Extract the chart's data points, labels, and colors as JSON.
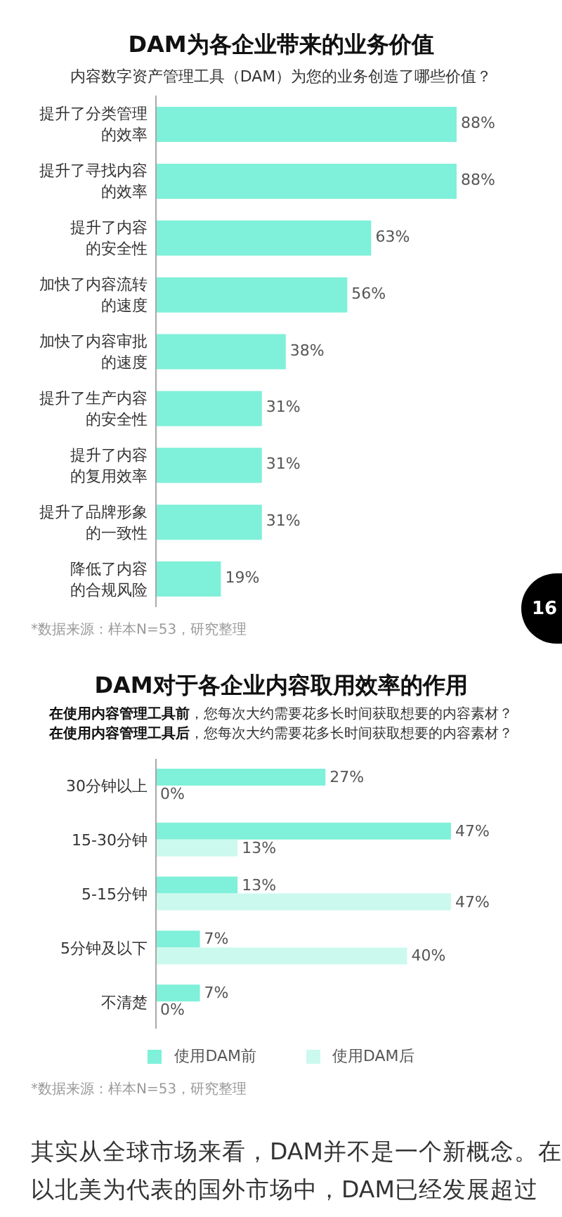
{
  "chart_data": [
    {
      "type": "bar",
      "orientation": "horizontal",
      "title": "DAM为各企业带来的业务价值",
      "subtitle": "内容数字资产管理工具（DAM）为您的业务创造了哪些价值？",
      "categories": [
        "提升了分类管理的效率",
        "提升了寻找内容的效率",
        "提升了内容的安全性",
        "加快了内容流转的速度",
        "加快了内容审批的速度",
        "提升了生产内容的安全性",
        "提升了内容的复用效率",
        "提升了品牌形象的一致性",
        "降低了内容的合规风险"
      ],
      "values": [
        88,
        88,
        63,
        56,
        38,
        31,
        31,
        31,
        19
      ],
      "value_labels": [
        "88%",
        "88%",
        "63%",
        "56%",
        "38%",
        "31%",
        "31%",
        "31%",
        "19%"
      ],
      "color": "#7ff0d9",
      "tick_labels": "y",
      "annotations": [
        "*数据来源：样本N=53，研究整理",
        "16"
      ]
    },
    {
      "type": "bar",
      "orientation": "horizontal",
      "title": "DAM对于各企业内容取用效率的作用",
      "subtitle": "在使用内容管理工具前，您每次大约需要花多长时间获取想要的内容素材？在使用内容管理工具后，您每次大约需要花多长时间获取想要的内容素材？",
      "categories": [
        "30分钟以上",
        "15-30分钟",
        "5-15分钟",
        "5分钟及以下",
        "不清楚"
      ],
      "series": [
        {
          "name": "使用DAM前",
          "color": "#7ff0d9",
          "values": [
            27,
            47,
            13,
            7,
            7
          ],
          "value_labels": [
            "27%",
            "47%",
            "13%",
            "7%",
            "7%"
          ]
        },
        {
          "name": "使用DAM后",
          "color": "#cbf9ee",
          "values": [
            0,
            13,
            47,
            40,
            0
          ],
          "value_labels": [
            "0%",
            "13%",
            "47%",
            "40%",
            "0%"
          ]
        }
      ],
      "tick_labels": "y",
      "legend": "bottom",
      "annotations": [
        "*数据来源：样本N=53，研究整理",
        "其实从全球市场来看，DAM并不是一个新概念。在以北美为代表的国外市场中，DAM已经发展超过"
      ]
    }
  ]
}
